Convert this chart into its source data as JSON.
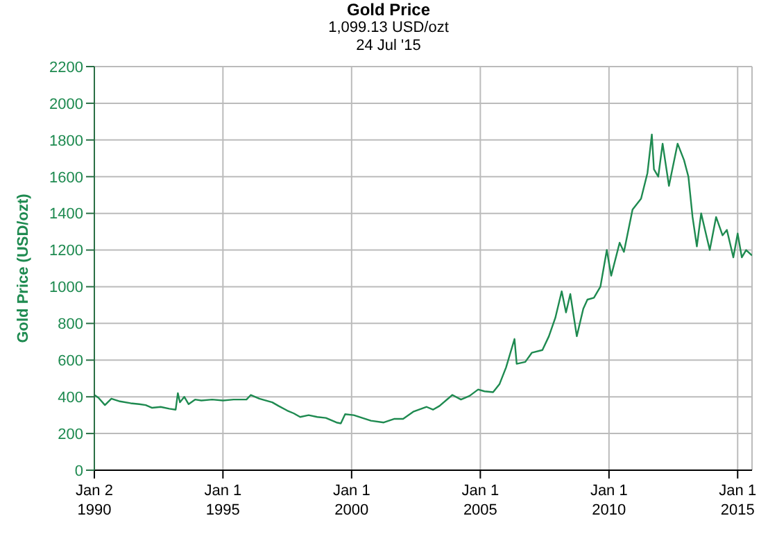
{
  "chart_data": {
    "type": "line",
    "title": "Gold Price",
    "subtitle": "1,099.13 USD/ozt\n24 Jul '15",
    "ylabel": "Gold Price (USD/ozt)",
    "x": [
      "1990-01-02",
      "1990-03",
      "1990-06",
      "1990-09",
      "1991-01",
      "1991-06",
      "1991-10",
      "1992-01",
      "1992-04",
      "1992-08",
      "1992-12",
      "1993-03",
      "1993-04",
      "1993-05",
      "1993-07",
      "1993-09",
      "1993-12",
      "1994-03",
      "1994-08",
      "1995-01",
      "1995-06",
      "1995-12",
      "1996-02",
      "1996-06",
      "1996-12",
      "1997-03",
      "1997-07",
      "1997-10",
      "1998-01",
      "1998-05",
      "1998-09",
      "1999-01",
      "1999-06",
      "1999-08",
      "1999-10",
      "2000-02",
      "2000-06",
      "2000-10",
      "2001-04",
      "2001-09",
      "2002-01",
      "2002-06",
      "2002-12",
      "2003-03",
      "2003-06",
      "2003-12",
      "2004-04",
      "2004-08",
      "2004-12",
      "2005-03",
      "2005-07",
      "2005-10",
      "2006-01",
      "2006-05",
      "2006-06",
      "2006-10",
      "2007-01",
      "2007-06",
      "2007-09",
      "2007-12",
      "2008-03",
      "2008-05",
      "2008-07",
      "2008-10",
      "2009-01",
      "2009-03",
      "2009-06",
      "2009-09",
      "2009-12",
      "2010-02",
      "2010-06",
      "2010-08",
      "2010-12",
      "2011-04",
      "2011-07",
      "2011-09",
      "2011-10",
      "2011-12",
      "2012-02",
      "2012-05",
      "2012-09",
      "2012-12",
      "2013-02",
      "2013-04",
      "2013-06",
      "2013-08",
      "2013-12",
      "2014-03",
      "2014-06",
      "2014-08",
      "2014-11",
      "2015-01",
      "2015-03",
      "2015-05",
      "2015-07-24"
    ],
    "series": [
      {
        "color": "#1e8a50",
        "values": [
          410,
          395,
          355,
          390,
          375,
          365,
          360,
          355,
          340,
          345,
          335,
          330,
          420,
          370,
          400,
          360,
          385,
          380,
          385,
          380,
          385,
          385,
          410,
          390,
          370,
          350,
          325,
          310,
          290,
          300,
          290,
          285,
          260,
          255,
          305,
          300,
          285,
          270,
          260,
          280,
          280,
          320,
          345,
          330,
          350,
          410,
          385,
          405,
          440,
          430,
          425,
          470,
          560,
          715,
          580,
          590,
          640,
          655,
          730,
          830,
          975,
          860,
          960,
          730,
          880,
          930,
          940,
          1000,
          1200,
          1060,
          1240,
          1190,
          1420,
          1480,
          1620,
          1830,
          1640,
          1600,
          1780,
          1550,
          1780,
          1690,
          1600,
          1380,
          1220,
          1400,
          1200,
          1380,
          1280,
          1310,
          1160,
          1290,
          1160,
          1200,
          1170
        ]
      }
    ],
    "xlim": [
      "1990-01-02",
      "2015-07-24"
    ],
    "xticks": [
      {
        "value": "1990-01-02",
        "label": "Jan 2\n1990"
      },
      {
        "value": "1995-01-01",
        "label": "Jan 1\n1995"
      },
      {
        "value": "2000-01-01",
        "label": "Jan 1\n2000"
      },
      {
        "value": "2005-01-01",
        "label": "Jan 1\n2005"
      },
      {
        "value": "2010-01-01",
        "label": "Jan 1\n2010"
      },
      {
        "value": "2015-01-01",
        "label": "Jan 1\n2015"
      }
    ],
    "ylim": [
      0,
      2200
    ],
    "yticks": [
      0,
      200,
      400,
      600,
      800,
      1000,
      1200,
      1400,
      1600,
      1800,
      2000,
      2200
    ],
    "grid": true,
    "legend": false,
    "marker": "none",
    "line_style": "solid"
  }
}
